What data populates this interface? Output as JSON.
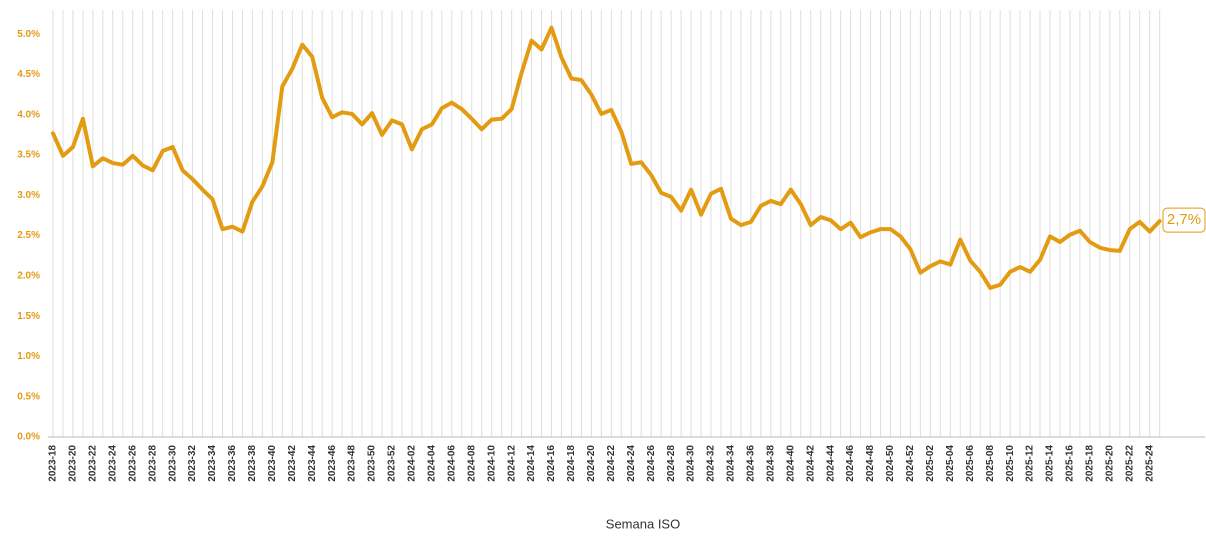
{
  "chart_data": {
    "type": "line",
    "x_label": "Semana ISO",
    "color": "#e39b12",
    "grid": true,
    "annotation": "2,7%",
    "categories": [
      "2023-18",
      null,
      "2023-20",
      null,
      "2023-22",
      null,
      "2023-24",
      null,
      "2023-26",
      null,
      "2023-28",
      null,
      "2023-30",
      null,
      "2023-32",
      null,
      "2023-34",
      null,
      "2023-36",
      null,
      "2023-38",
      null,
      "2023-40",
      null,
      "2023-42",
      null,
      "2023-44",
      null,
      "2023-46",
      null,
      "2023-48",
      null,
      "2023-50",
      null,
      "2023-52",
      null,
      "2024-02",
      null,
      "2024-04",
      null,
      "2024-06",
      null,
      "2024-08",
      null,
      "2024-10",
      null,
      "2024-12",
      null,
      "2024-14",
      null,
      "2024-16",
      null,
      "2024-18",
      null,
      "2024-20",
      null,
      "2024-22",
      null,
      "2024-24",
      null,
      "2024-26",
      null,
      "2024-28",
      null,
      "2024-30",
      null,
      "2024-32",
      null,
      "2024-34",
      null,
      "2024-36",
      null,
      "2024-38",
      null,
      "2024-40",
      null,
      "2024-42",
      null,
      "2024-44",
      null,
      "2024-46",
      null,
      "2024-48",
      null,
      "2024-50",
      null,
      "2024-52",
      null,
      "2025-02",
      null,
      "2025-04",
      null,
      "2025-06",
      null,
      "2025-08",
      null,
      "2025-10",
      null,
      "2025-12",
      null,
      "2025-14",
      null,
      "2025-16",
      null,
      "2025-18",
      null,
      "2025-20",
      null,
      "2025-22",
      null,
      "2025-24",
      null
    ],
    "values": [
      3.77,
      3.49,
      3.6,
      3.95,
      3.36,
      3.46,
      3.4,
      3.38,
      3.49,
      3.37,
      3.31,
      3.55,
      3.6,
      3.31,
      3.2,
      3.07,
      2.95,
      2.58,
      2.61,
      2.55,
      2.92,
      3.11,
      3.41,
      4.35,
      4.57,
      4.87,
      4.72,
      4.21,
      3.97,
      4.03,
      4.01,
      3.88,
      4.02,
      3.75,
      3.93,
      3.88,
      3.57,
      3.82,
      3.88,
      4.08,
      4.15,
      4.07,
      3.95,
      3.82,
      3.94,
      3.95,
      4.07,
      4.52,
      4.92,
      4.81,
      5.08,
      4.71,
      4.45,
      4.43,
      4.25,
      4.01,
      4.06,
      3.79,
      3.39,
      3.41,
      3.25,
      3.03,
      2.98,
      2.81,
      3.07,
      2.76,
      3.02,
      3.08,
      2.71,
      2.63,
      2.67,
      2.87,
      2.93,
      2.89,
      3.07,
      2.89,
      2.63,
      2.73,
      2.69,
      2.58,
      2.66,
      2.48,
      2.54,
      2.58,
      2.58,
      2.49,
      2.33,
      2.04,
      2.12,
      2.18,
      2.14,
      2.45,
      2.19,
      2.05,
      1.85,
      1.89,
      2.05,
      2.11,
      2.05,
      2.2,
      2.49,
      2.42,
      2.51,
      2.56,
      2.42,
      2.35,
      2.32,
      2.31,
      2.58,
      2.67,
      2.55,
      2.68
    ],
    "ylim": [
      0,
      5.3
    ],
    "yticks": [
      {
        "value": 0,
        "label": "0.0%"
      },
      {
        "value": 0.5,
        "label": "0.5%"
      },
      {
        "value": 1,
        "label": "1.0%"
      },
      {
        "value": 1.5,
        "label": "1.5%"
      },
      {
        "value": 2,
        "label": "2.0%"
      },
      {
        "value": 2.5,
        "label": "2.5%"
      },
      {
        "value": 3,
        "label": "3.0%"
      },
      {
        "value": 3.5,
        "label": "3.5%"
      },
      {
        "value": 4,
        "label": "4.0%"
      },
      {
        "value": 4.5,
        "label": "4.5%"
      },
      {
        "value": 5,
        "label": "5.0%"
      }
    ]
  }
}
